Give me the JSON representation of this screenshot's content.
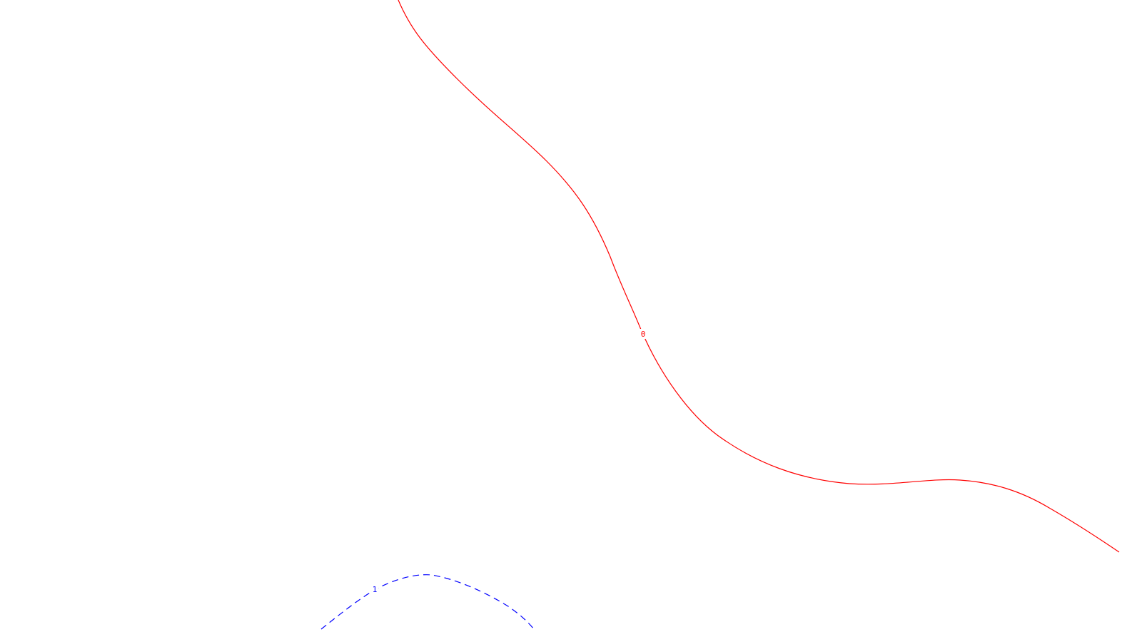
{
  "contours": [
    {
      "id": "contour-0",
      "label": "0",
      "color": "#ff0000",
      "style": "solid"
    },
    {
      "id": "contour-1",
      "label": "1",
      "color": "#0000ff",
      "style": "dashed"
    }
  ],
  "background": "#ffffff"
}
